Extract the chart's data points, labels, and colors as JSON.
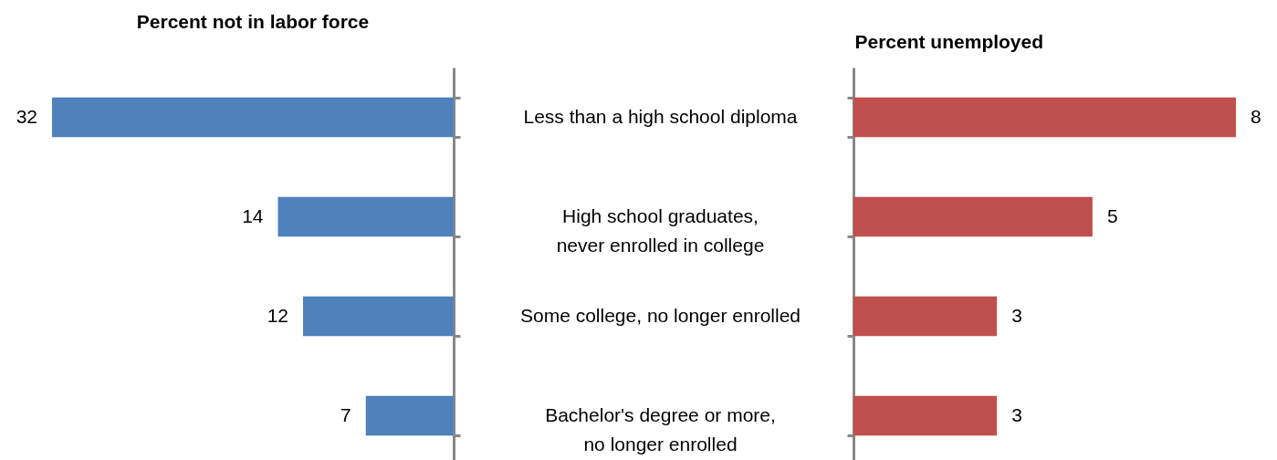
{
  "chart_data": [
    {
      "type": "bar",
      "orientation": "horizontal",
      "title": "Percent not in labor force",
      "categories": [
        "Less than a high school diploma",
        "High school graduates, never enrolled in college",
        "Some college, no longer enrolled",
        "Bachelor's degree or more, no longer enrolled"
      ],
      "values": [
        32,
        14,
        12,
        7
      ],
      "color": "#4f81bd",
      "xlim": [
        32,
        0
      ],
      "data_labels": true,
      "tick_labels": "y"
    },
    {
      "type": "bar",
      "orientation": "horizontal",
      "title": "Percent unemployed",
      "categories": [
        "Less than a high school diploma",
        "High school graduates, never enrolled in college",
        "Some college, no longer enrolled",
        "Bachelor's degree or more, no longer enrolled"
      ],
      "values": [
        8,
        5,
        3,
        3
      ],
      "color": "#c0504d",
      "xlim": [
        0,
        8
      ],
      "data_labels": true,
      "tick_labels": false
    }
  ]
}
